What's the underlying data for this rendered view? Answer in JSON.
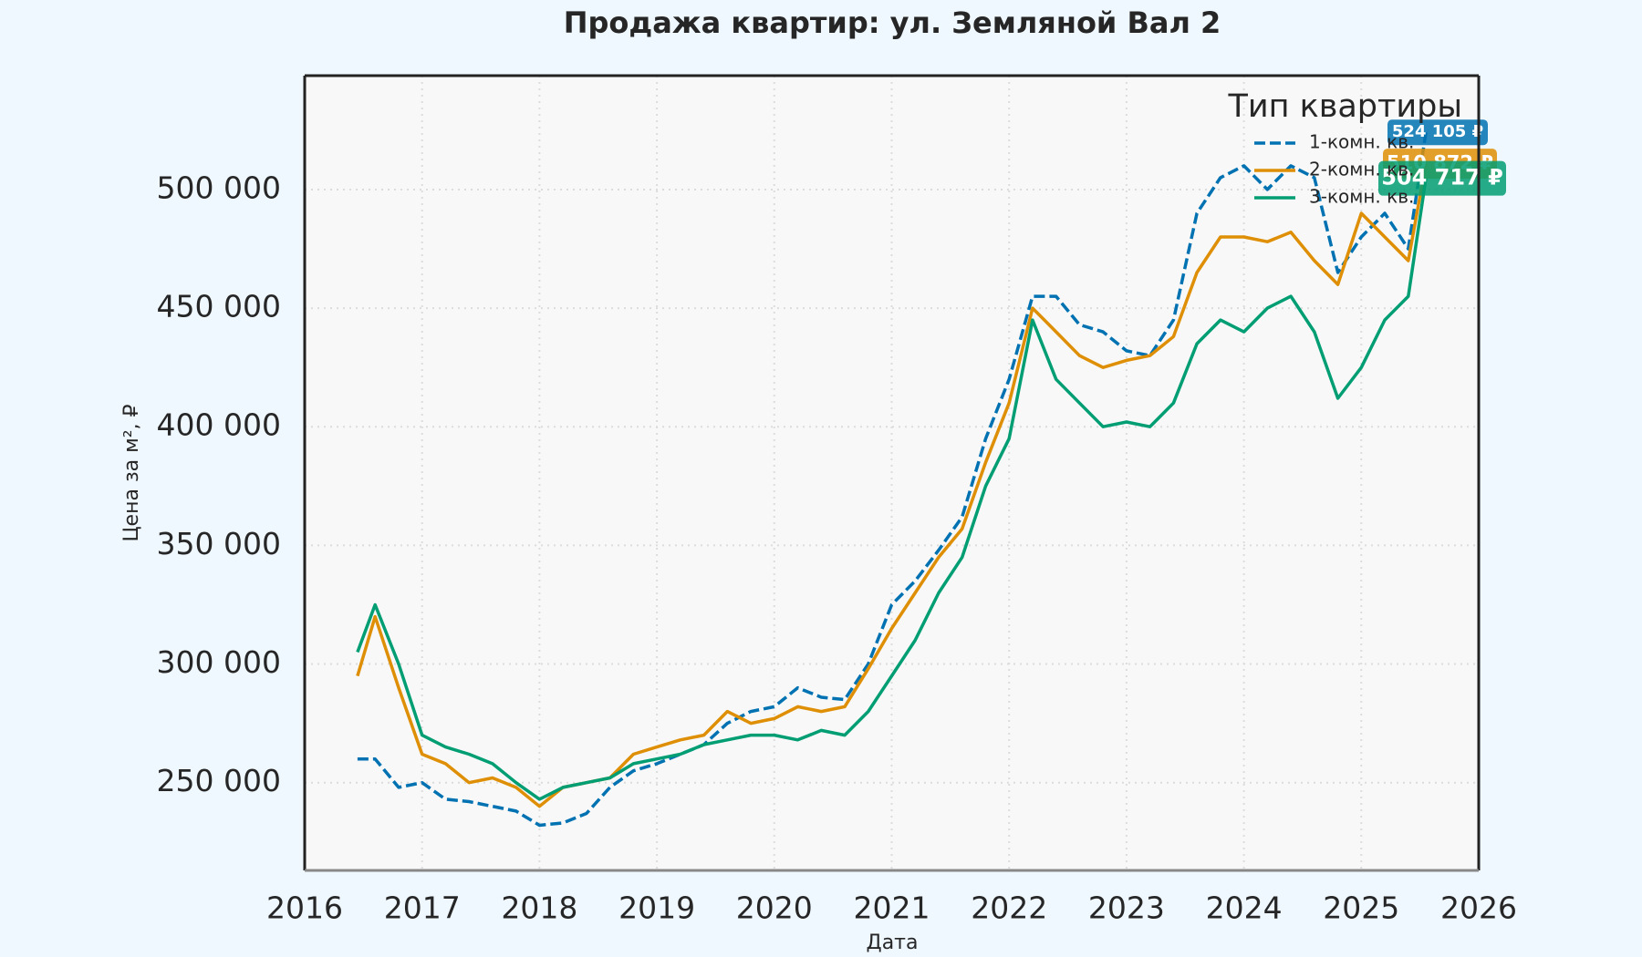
{
  "chart_data": {
    "type": "line",
    "title": "Продажа квартир: ул. Земляной Вал 2",
    "x_label": "Дата",
    "y_label": "Цена за м², ₽",
    "legend_title": "Тип квартиры",
    "legend_position": "upper right",
    "grid": true,
    "xlim": [
      2016,
      2026
    ],
    "xticks": [
      2016,
      2017,
      2018,
      2019,
      2020,
      2021,
      2022,
      2023,
      2024,
      2025,
      2026
    ],
    "ylim": [
      213000,
      548000
    ],
    "yticks": [
      {
        "value": 250000,
        "label": "250 000"
      },
      {
        "value": 300000,
        "label": "300 000"
      },
      {
        "value": 350000,
        "label": "350 000"
      },
      {
        "value": 400000,
        "label": "400 000"
      },
      {
        "value": 450000,
        "label": "450 000"
      },
      {
        "value": 500000,
        "label": "500 000"
      }
    ],
    "x": [
      2016.45,
      2016.6,
      2016.8,
      2017.0,
      2017.2,
      2017.4,
      2017.6,
      2017.8,
      2018.0,
      2018.2,
      2018.4,
      2018.6,
      2018.8,
      2019.0,
      2019.2,
      2019.4,
      2019.6,
      2019.8,
      2020.0,
      2020.2,
      2020.4,
      2020.6,
      2020.8,
      2021.0,
      2021.2,
      2021.4,
      2021.6,
      2021.8,
      2022.0,
      2022.2,
      2022.4,
      2022.6,
      2022.8,
      2023.0,
      2023.2,
      2023.4,
      2023.6,
      2023.8,
      2024.0,
      2024.2,
      2024.4,
      2024.6,
      2024.8,
      2025.0,
      2025.2,
      2025.4,
      2025.55
    ],
    "series": [
      {
        "name": "1-комн. кв.",
        "color": "#0072b2",
        "dashed": true,
        "values": [
          260000,
          260000,
          248000,
          250000,
          243000,
          242000,
          240000,
          238000,
          232000,
          233000,
          237000,
          248000,
          255000,
          258000,
          262000,
          266000,
          275000,
          280000,
          282000,
          290000,
          286000,
          285000,
          300000,
          325000,
          335000,
          348000,
          362000,
          395000,
          420000,
          455000,
          455000,
          443000,
          440000,
          432000,
          430000,
          445000,
          490000,
          505000,
          510000,
          500000,
          510000,
          505000,
          465000,
          480000,
          490000,
          475000,
          524105
        ],
        "value_labels": [
          null,
          null,
          null,
          null,
          null,
          null,
          null,
          null,
          null,
          null,
          null,
          null,
          null,
          null,
          null,
          null,
          null,
          null,
          null,
          null,
          null,
          null,
          null,
          null,
          null,
          null,
          null,
          null,
          null,
          null,
          null,
          null,
          null,
          null,
          null,
          null,
          null,
          null,
          null,
          null,
          null,
          null,
          null,
          null,
          null,
          null,
          "524 105 ₽"
        ]
      },
      {
        "name": "2-комн. кв.",
        "color": "#de8f05",
        "dashed": false,
        "values": [
          295000,
          320000,
          290000,
          262000,
          258000,
          250000,
          252000,
          248000,
          240000,
          248000,
          250000,
          252000,
          262000,
          265000,
          268000,
          270000,
          280000,
          275000,
          277000,
          282000,
          280000,
          282000,
          298000,
          315000,
          330000,
          345000,
          357000,
          385000,
          410000,
          450000,
          440000,
          430000,
          425000,
          428000,
          430000,
          438000,
          465000,
          480000,
          480000,
          478000,
          482000,
          470000,
          460000,
          490000,
          480000,
          470000,
          510872
        ],
        "value_labels": [
          null,
          null,
          null,
          null,
          null,
          null,
          null,
          null,
          null,
          null,
          null,
          null,
          null,
          null,
          null,
          null,
          null,
          null,
          null,
          null,
          null,
          null,
          null,
          null,
          null,
          null,
          null,
          null,
          null,
          null,
          null,
          null,
          null,
          null,
          null,
          null,
          null,
          null,
          null,
          null,
          null,
          null,
          null,
          null,
          null,
          null,
          "510 872 ₽"
        ]
      },
      {
        "name": "3-комн. кв.",
        "color": "#029e73",
        "dashed": false,
        "values": [
          305000,
          325000,
          300000,
          270000,
          265000,
          262000,
          258000,
          250000,
          243000,
          248000,
          250000,
          252000,
          258000,
          260000,
          262000,
          266000,
          268000,
          270000,
          270000,
          268000,
          272000,
          270000,
          280000,
          295000,
          310000,
          330000,
          345000,
          375000,
          395000,
          445000,
          420000,
          410000,
          400000,
          402000,
          400000,
          410000,
          435000,
          445000,
          440000,
          450000,
          455000,
          440000,
          412000,
          425000,
          445000,
          455000,
          504717
        ],
        "value_labels": [
          null,
          null,
          null,
          null,
          null,
          null,
          null,
          null,
          null,
          null,
          null,
          null,
          null,
          null,
          null,
          null,
          null,
          null,
          null,
          null,
          null,
          null,
          null,
          null,
          null,
          null,
          null,
          null,
          null,
          null,
          null,
          null,
          null,
          null,
          null,
          null,
          null,
          null,
          null,
          null,
          null,
          null,
          null,
          null,
          null,
          null,
          "504 717 ₽"
        ]
      }
    ]
  }
}
